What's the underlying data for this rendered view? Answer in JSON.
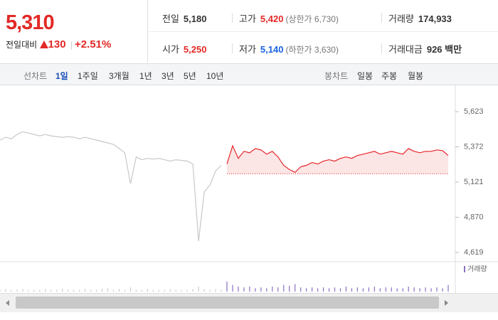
{
  "header": {
    "price": "5,310",
    "change_label": "전일대비",
    "change": "130",
    "change_pct": "+2.51%"
  },
  "info": [
    [
      {
        "label": "전일",
        "value": "5,180"
      },
      {
        "label": "고가",
        "value": "5,420",
        "note": "(상한가 6,730)"
      },
      {
        "label": "거래량",
        "value": "174,933"
      }
    ],
    [
      {
        "label": "시가",
        "value": "5,250"
      },
      {
        "label": "저가",
        "value": "5,140",
        "note": "(하한가 3,630)"
      },
      {
        "label": "거래대금",
        "value": "926 백만"
      }
    ]
  ],
  "tabs": {
    "line_label": "선차트",
    "line": [
      "1일",
      "1주일",
      "3개월",
      "1년",
      "3년",
      "5년",
      "10년"
    ],
    "candle_label": "봉차트",
    "candle": [
      "일봉",
      "주봉",
      "월봉"
    ]
  },
  "chart_data": {
    "type": "line",
    "categories": [
      null,
      null,
      null,
      null,
      null,
      null,
      null,
      null,
      null,
      null,
      null,
      null,
      null,
      null,
      null,
      null,
      null,
      null,
      null,
      null,
      null,
      null,
      null,
      null,
      null,
      null,
      null,
      null,
      null,
      null,
      null,
      null,
      null,
      null,
      null,
      null,
      null,
      null,
      null,
      null,
      null,
      null,
      null,
      null,
      null,
      null,
      null,
      null,
      null,
      null,
      null,
      null,
      null,
      null,
      null,
      null,
      null,
      null,
      null,
      null,
      null,
      null,
      null,
      null,
      null,
      null,
      null,
      null,
      null,
      null,
      null,
      null,
      null,
      null,
      null,
      null,
      null,
      null,
      null,
      null
    ],
    "series": [
      {
        "color": "#c8c8c8",
        "values": [
          5420,
          5440,
          5430,
          5460,
          5480,
          5470,
          5460,
          5450,
          5460,
          5450,
          5445,
          5440,
          5445,
          5440,
          5430,
          5440,
          5430,
          5420,
          5410,
          5400,
          5390,
          5360,
          5330,
          5110,
          5300,
          5280,
          5290,
          5285,
          5290,
          5280,
          5270,
          5280,
          5275,
          5270,
          5250,
          4700,
          5050,
          5100,
          5200,
          5240,
          null,
          null,
          null,
          null,
          null,
          null,
          null,
          null,
          null,
          null,
          null,
          null,
          null,
          null,
          null,
          null,
          null,
          null,
          null,
          null,
          null,
          null,
          null,
          null,
          null,
          null,
          null,
          null,
          null,
          null,
          null,
          null,
          null,
          null,
          null,
          null,
          null,
          null,
          null,
          null
        ]
      },
      {
        "color": "#e8262b",
        "values": [
          null,
          null,
          null,
          null,
          null,
          null,
          null,
          null,
          null,
          null,
          null,
          null,
          null,
          null,
          null,
          null,
          null,
          null,
          null,
          null,
          null,
          null,
          null,
          null,
          null,
          null,
          null,
          null,
          null,
          null,
          null,
          null,
          null,
          null,
          null,
          null,
          null,
          null,
          null,
          null,
          5250,
          5380,
          5290,
          5340,
          5330,
          5360,
          5350,
          5320,
          5340,
          5300,
          5240,
          5210,
          5190,
          5230,
          5240,
          5260,
          5250,
          5270,
          5280,
          5270,
          5290,
          5300,
          5290,
          5310,
          5320,
          5330,
          5340,
          5320,
          5330,
          5340,
          5330,
          5320,
          5360,
          5340,
          5330,
          5340,
          5340,
          5350,
          5345,
          5310
        ]
      },
      {
        "name": "거래량",
        "color": "#8b6fc4",
        "values": [
          2,
          3,
          2,
          2,
          3,
          2,
          2,
          2,
          3,
          2,
          2,
          3,
          2,
          2,
          2,
          3,
          2,
          2,
          3,
          4,
          2,
          3,
          2,
          5,
          2,
          2,
          3,
          2,
          2,
          2,
          3,
          2,
          2,
          2,
          3,
          6,
          3,
          2,
          3,
          2,
          12,
          8,
          6,
          5,
          6,
          4,
          5,
          4,
          6,
          5,
          8,
          7,
          9,
          5,
          4,
          5,
          4,
          5,
          4,
          5,
          4,
          6,
          4,
          5,
          4,
          5,
          6,
          4,
          5,
          5,
          4,
          4,
          6,
          5,
          4,
          5,
          4,
          5,
          4,
          8
        ]
      }
    ],
    "baseline": 5180,
    "ylim": [
      4619,
      5623
    ],
    "yticks": [
      {
        "value": 5623,
        "label": "5,623"
      },
      {
        "value": 5372,
        "label": "5,372"
      },
      {
        "value": 5121,
        "label": "5,121"
      },
      {
        "value": 4870,
        "label": "4,870"
      },
      {
        "value": 4619,
        "label": "4,619"
      }
    ]
  }
}
